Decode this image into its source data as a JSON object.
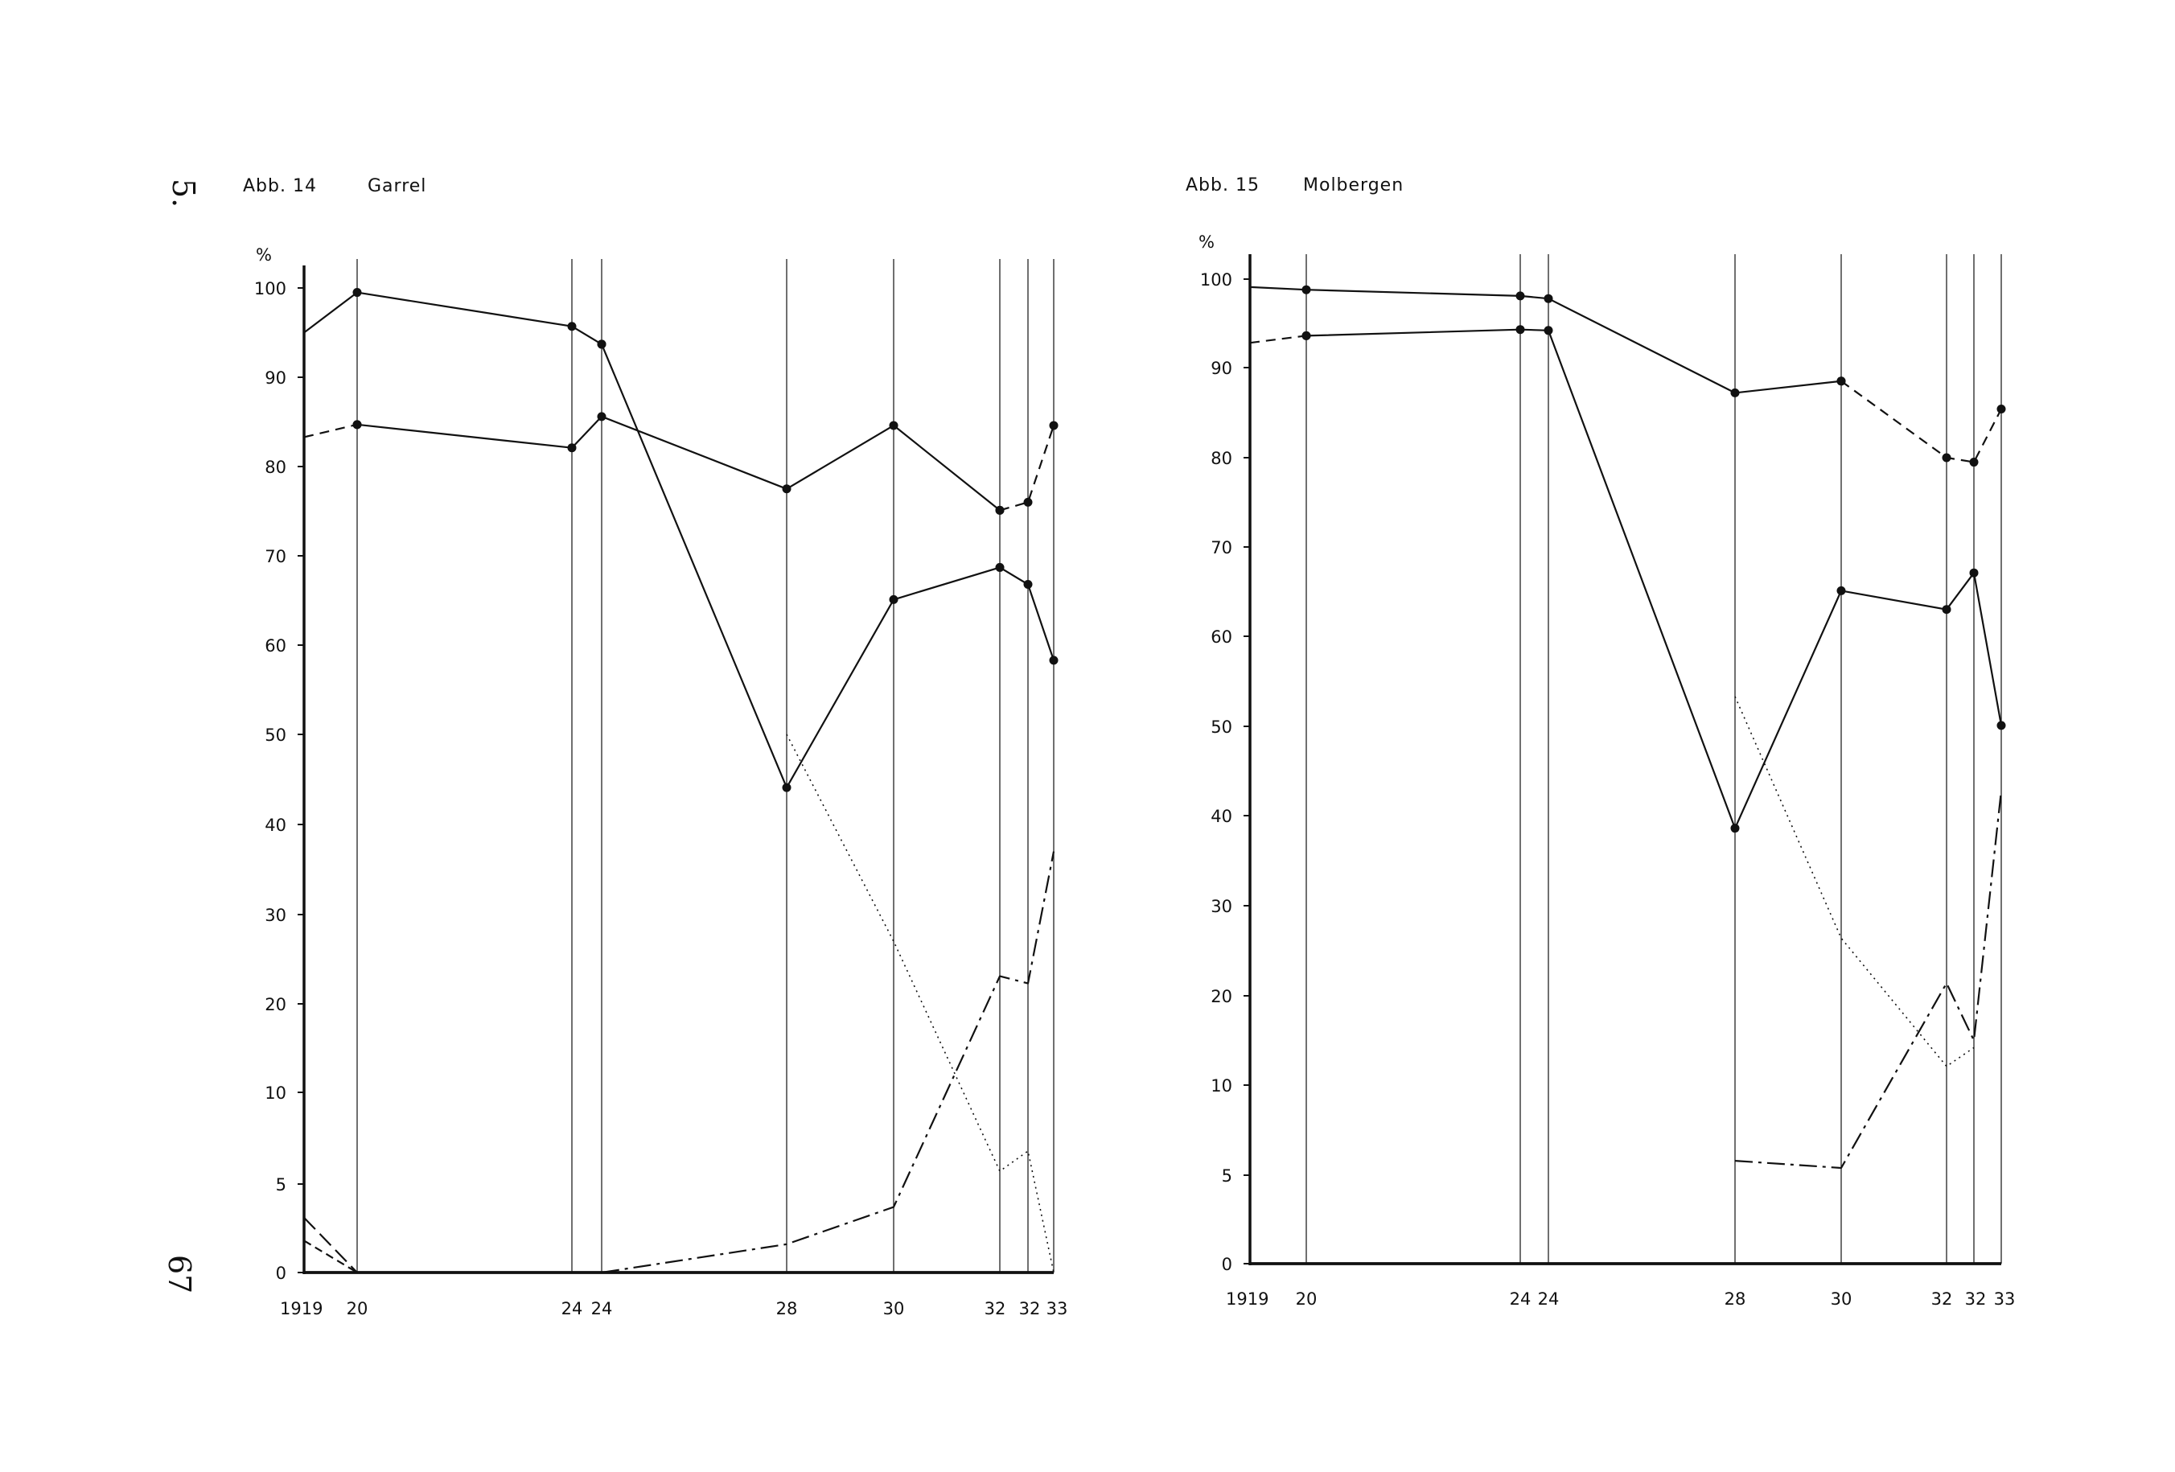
{
  "page": {
    "page_number": "67",
    "corner_mark": "5."
  },
  "chart_data": [
    {
      "type": "line",
      "title": "Abb. 14",
      "subtitle": "Garrel",
      "ylabel": "%",
      "xlabel": "",
      "ylim": [
        0,
        100
      ],
      "y_ticks": [
        0,
        5,
        10,
        20,
        30,
        40,
        50,
        60,
        70,
        80,
        90,
        100
      ],
      "x": [
        0,
        1,
        2,
        3,
        4,
        5,
        6,
        7,
        8
      ],
      "x_tick_labels": [
        "1919",
        "20",
        "24",
        "24",
        "28",
        "30",
        "32",
        "32",
        "33"
      ],
      "grid": "vertical lines at every election",
      "series": [
        {
          "style": "solid-with-dots",
          "values": [
            95,
            99.5,
            95.7,
            93.7,
            null,
            null,
            null,
            null,
            null
          ]
        },
        {
          "style": "solid-with-dots",
          "values": [
            null,
            null,
            null,
            93.7,
            44.1,
            65.1,
            68.7,
            66.8,
            58.3
          ]
        },
        {
          "style": "dashed-with-dots",
          "values": [
            83.3,
            84.7,
            null,
            null,
            null,
            null,
            null,
            null,
            null
          ]
        },
        {
          "style": "solid-with-dots",
          "values": [
            null,
            84.7,
            82.1,
            85.6,
            77.5,
            84.6,
            75.1,
            null,
            null
          ]
        },
        {
          "style": "dashed-with-dots",
          "values": [
            null,
            null,
            null,
            null,
            null,
            null,
            75.1,
            76,
            84.6
          ]
        },
        {
          "style": "dotted",
          "values": [
            null,
            null,
            null,
            null,
            50,
            27,
            5.7,
            6.8,
            0
          ]
        },
        {
          "style": "dash-dot",
          "values": [
            null,
            null,
            null,
            0,
            1.6,
            3.7,
            23.1,
            22.3,
            37
          ]
        },
        {
          "style": "long-dash",
          "values": [
            3.1,
            0,
            null,
            null,
            null,
            null,
            null,
            null,
            null
          ]
        },
        {
          "style": "short-dash",
          "values": [
            1.8,
            0,
            null,
            null,
            null,
            null,
            null,
            null,
            null
          ]
        },
        {
          "style": "solid-thick",
          "values": [
            0,
            0,
            0,
            0,
            0,
            0,
            0,
            0,
            0
          ]
        }
      ]
    },
    {
      "type": "line",
      "title": "Abb. 15",
      "subtitle": "Molbergen",
      "ylabel": "%",
      "xlabel": "",
      "ylim": [
        0,
        100
      ],
      "y_ticks": [
        0,
        5,
        10,
        20,
        30,
        40,
        50,
        60,
        70,
        80,
        90,
        100
      ],
      "x": [
        0,
        1,
        2,
        3,
        4,
        5,
        6,
        7,
        8
      ],
      "x_tick_labels": [
        "1919",
        "20",
        "24",
        "24",
        "28",
        "30",
        "32",
        "32",
        "33"
      ],
      "grid": "vertical lines at every election",
      "series": [
        {
          "style": "solid-with-dots",
          "values": [
            99.1,
            98.8,
            98.1,
            97.8,
            87.2,
            88.5,
            null,
            null,
            null
          ]
        },
        {
          "style": "dashed-with-dots",
          "values": [
            null,
            null,
            null,
            null,
            null,
            88.5,
            80,
            79.5,
            85.4
          ]
        },
        {
          "style": "dashed-with-dots",
          "values": [
            92.8,
            93.6,
            null,
            null,
            null,
            null,
            null,
            null,
            null
          ]
        },
        {
          "style": "solid-with-dots",
          "values": [
            null,
            93.6,
            94.3,
            94.2,
            38.6,
            65.1,
            63,
            67.1,
            50.1
          ]
        },
        {
          "style": "dotted",
          "values": [
            null,
            null,
            null,
            null,
            53.3,
            26.4,
            12.1,
            14.2,
            null
          ]
        },
        {
          "style": "dash-dot",
          "values": [
            null,
            null,
            null,
            null,
            5.8,
            5.4,
            21.4,
            15,
            42.8
          ]
        },
        {
          "style": "solid-thick",
          "values": [
            0,
            0,
            0,
            0,
            0,
            0,
            0,
            0,
            0
          ]
        }
      ]
    }
  ]
}
